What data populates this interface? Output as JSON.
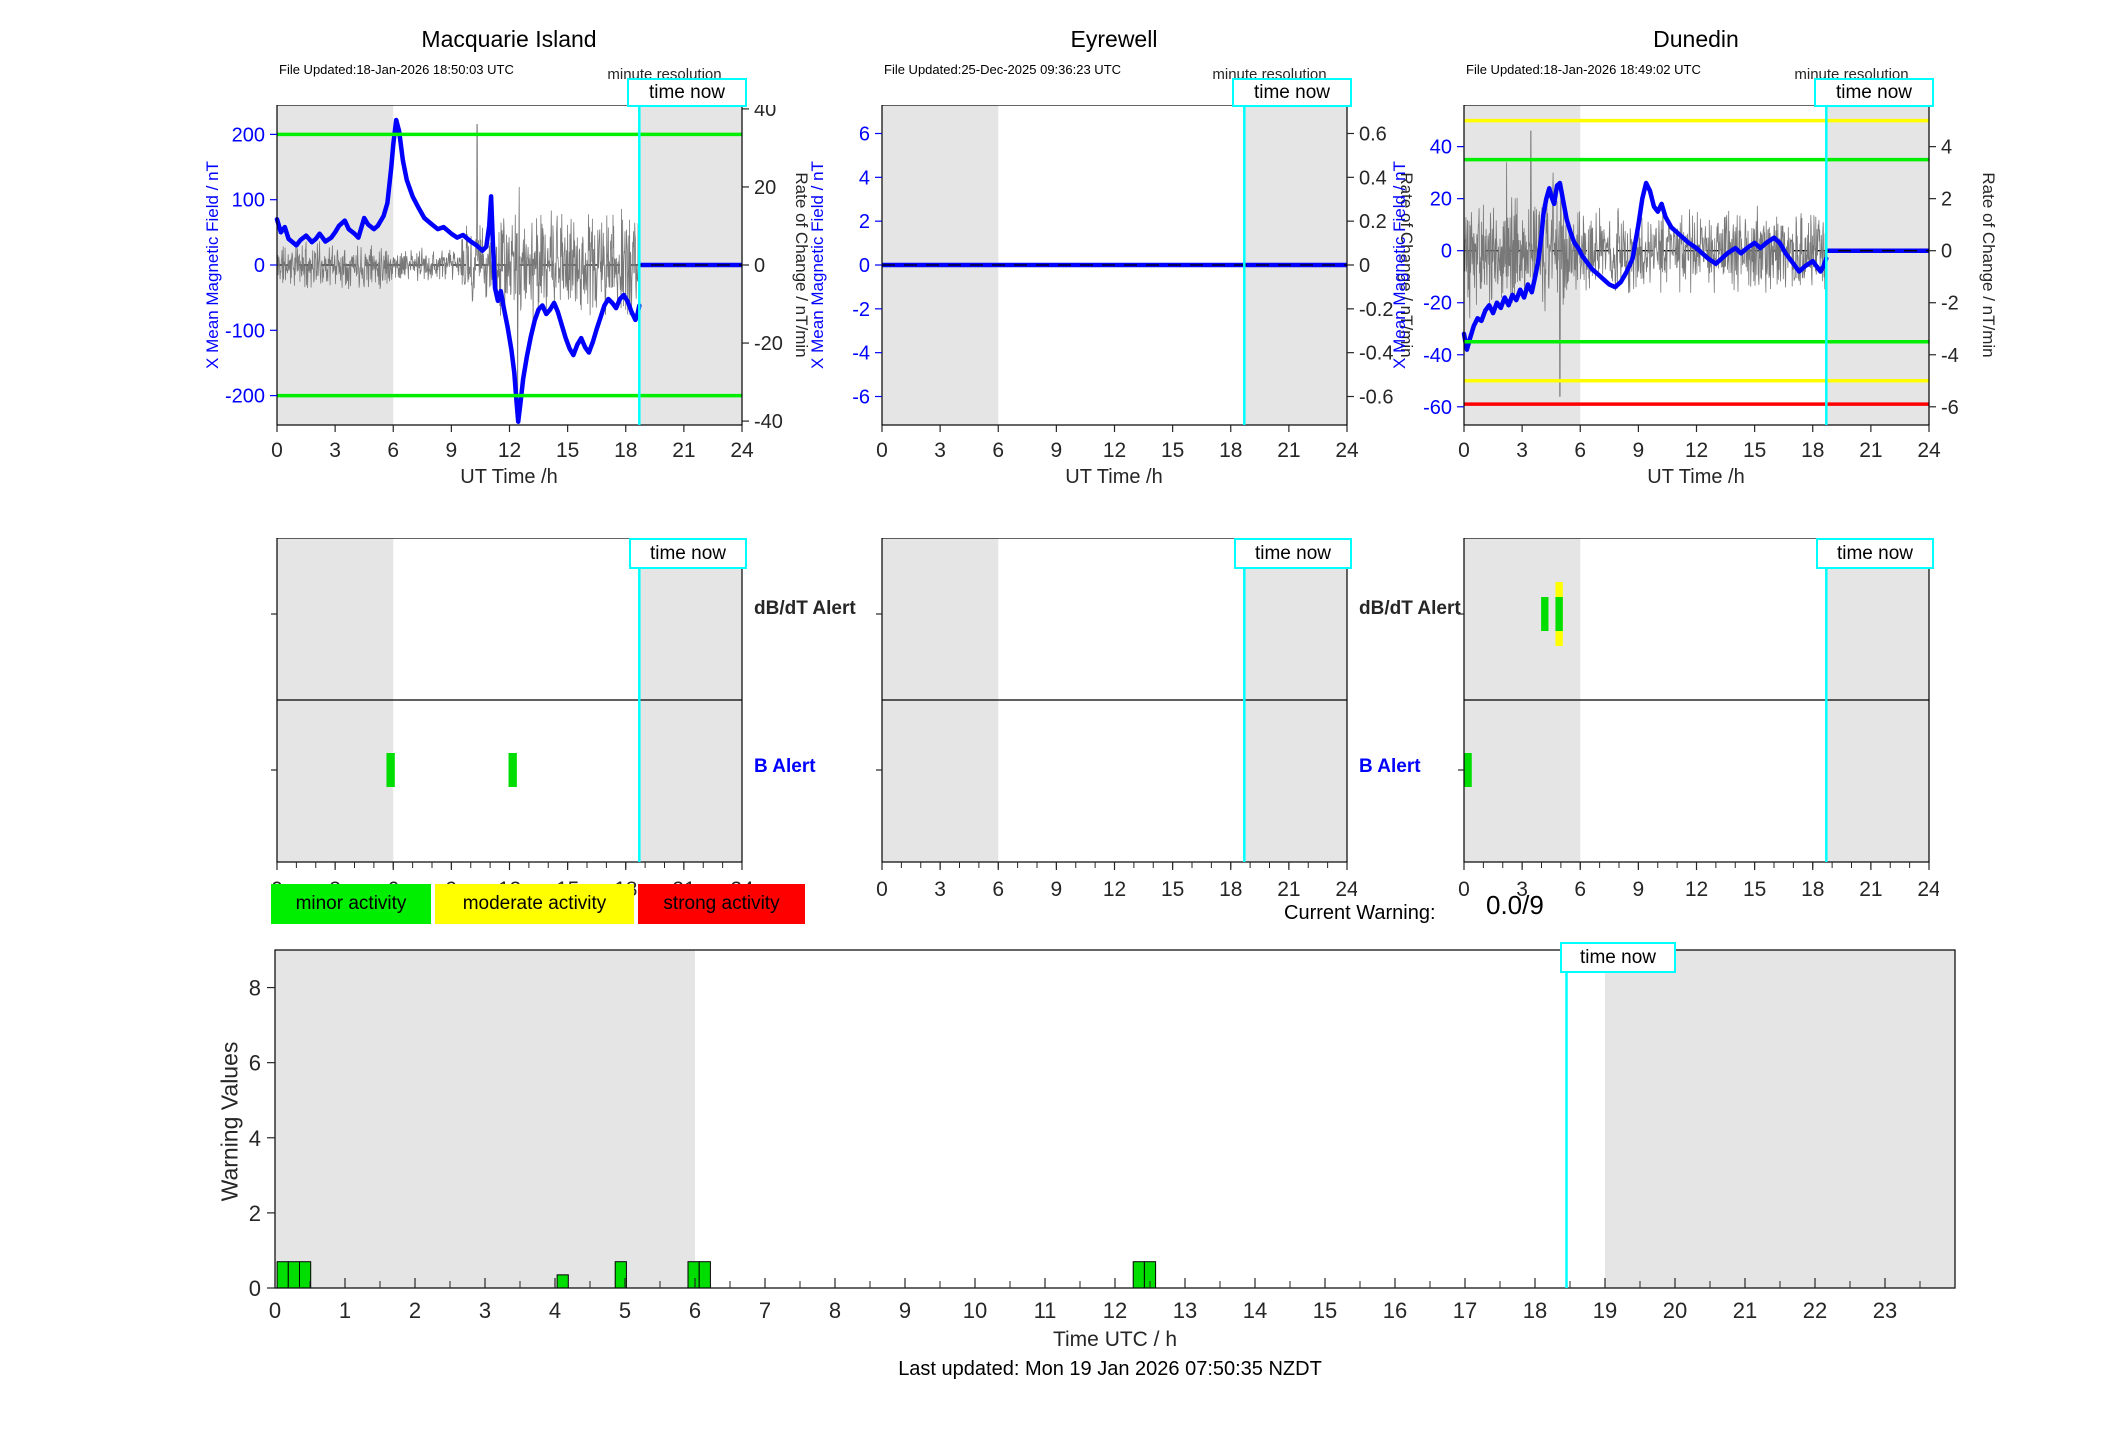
{
  "time_now_label": "time now",
  "alert_row_labels": {
    "dbdt": "dB/dT Alert",
    "b": "B Alert"
  },
  "legend": {
    "items": [
      {
        "label": "minor activity",
        "color": "#00ee00"
      },
      {
        "label": "moderate activity",
        "color": "#ffff00"
      },
      {
        "label": "strong activity",
        "color": "#ff0000"
      }
    ]
  },
  "current_warning": {
    "label": "Current Warning:",
    "value": "0.0/9"
  },
  "footer": {
    "text": "Last updated: Mon 19 Jan 2026 07:50:35 NZDT"
  },
  "colors": {
    "field_blue": "#0000ff",
    "noise_gray": "#787878",
    "shade": "#e5e5e5",
    "time_now_cyan": "#00ffff",
    "bar_green": "#00dd00"
  },
  "chart_data": [
    {
      "id": "macquarie-island",
      "type": "line",
      "title": "Macquarie Island",
      "file_updated": "File Updated:18-Jan-2026 18:50:03 UTC",
      "resolution_note": "minute resolution",
      "x": {
        "label": "UT Time /h",
        "ticks": [
          0,
          3,
          6,
          9,
          12,
          15,
          18,
          21,
          24
        ],
        "range": [
          0,
          24
        ]
      },
      "y_left": {
        "label": "X Mean Magnetic Field / nT",
        "ticks": [
          200,
          100,
          0,
          -100,
          -200
        ],
        "range": [
          -245,
          245
        ]
      },
      "y_right": {
        "label": "Rate of Change / nT/min",
        "ticks": [
          40,
          20,
          0,
          -20,
          -40
        ],
        "range": [
          -41,
          41
        ]
      },
      "shade_h": [
        [
          0,
          6
        ],
        [
          18.7,
          24
        ]
      ],
      "time_now_h": 18.7,
      "flat_from_h": 18.7,
      "thresholds": [
        {
          "value": 200,
          "color": "#00ee00"
        },
        {
          "value": -200,
          "color": "#00ee00"
        }
      ],
      "field_nT": [
        [
          0,
          70
        ],
        [
          0.2,
          50
        ],
        [
          0.4,
          58
        ],
        [
          0.6,
          40
        ],
        [
          0.8,
          35
        ],
        [
          1,
          30
        ],
        [
          1.2,
          38
        ],
        [
          1.5,
          45
        ],
        [
          1.8,
          35
        ],
        [
          2,
          40
        ],
        [
          2.2,
          48
        ],
        [
          2.5,
          36
        ],
        [
          2.8,
          42
        ],
        [
          3,
          50
        ],
        [
          3.2,
          60
        ],
        [
          3.5,
          68
        ],
        [
          3.7,
          55
        ],
        [
          4,
          48
        ],
        [
          4.2,
          42
        ],
        [
          4.5,
          72
        ],
        [
          4.7,
          62
        ],
        [
          5,
          55
        ],
        [
          5.2,
          60
        ],
        [
          5.5,
          75
        ],
        [
          5.7,
          95
        ],
        [
          5.9,
          150
        ],
        [
          6,
          185
        ],
        [
          6.15,
          222
        ],
        [
          6.3,
          205
        ],
        [
          6.5,
          160
        ],
        [
          6.7,
          130
        ],
        [
          7,
          105
        ],
        [
          7.3,
          88
        ],
        [
          7.6,
          72
        ],
        [
          8,
          62
        ],
        [
          8.3,
          55
        ],
        [
          8.6,
          58
        ],
        [
          9,
          48
        ],
        [
          9.3,
          42
        ],
        [
          9.6,
          46
        ],
        [
          10,
          36
        ],
        [
          10.3,
          30
        ],
        [
          10.6,
          22
        ],
        [
          10.8,
          28
        ],
        [
          10.95,
          60
        ],
        [
          11.05,
          105
        ],
        [
          11.15,
          30
        ],
        [
          11.25,
          -35
        ],
        [
          11.4,
          -55
        ],
        [
          11.55,
          -40
        ],
        [
          11.7,
          -65
        ],
        [
          11.9,
          -95
        ],
        [
          12.1,
          -130
        ],
        [
          12.25,
          -165
        ],
        [
          12.35,
          -205
        ],
        [
          12.45,
          -240
        ],
        [
          12.55,
          -215
        ],
        [
          12.7,
          -175
        ],
        [
          12.9,
          -140
        ],
        [
          13.1,
          -110
        ],
        [
          13.3,
          -85
        ],
        [
          13.5,
          -68
        ],
        [
          13.7,
          -62
        ],
        [
          13.9,
          -75
        ],
        [
          14.1,
          -68
        ],
        [
          14.3,
          -58
        ],
        [
          14.5,
          -72
        ],
        [
          14.7,
          -92
        ],
        [
          14.9,
          -112
        ],
        [
          15.1,
          -128
        ],
        [
          15.3,
          -138
        ],
        [
          15.5,
          -122
        ],
        [
          15.7,
          -112
        ],
        [
          15.9,
          -126
        ],
        [
          16.1,
          -134
        ],
        [
          16.3,
          -118
        ],
        [
          16.5,
          -98
        ],
        [
          16.7,
          -80
        ],
        [
          16.9,
          -62
        ],
        [
          17.1,
          -52
        ],
        [
          17.3,
          -58
        ],
        [
          17.5,
          -66
        ],
        [
          17.7,
          -52
        ],
        [
          17.9,
          -46
        ],
        [
          18.1,
          -56
        ],
        [
          18.3,
          -72
        ],
        [
          18.5,
          -84
        ],
        [
          18.6,
          -76
        ],
        [
          18.7,
          -62
        ]
      ],
      "noise": {
        "seed": 11,
        "step_h": 0.02,
        "envelope": [
          [
            0,
            6,
            7
          ],
          [
            6,
            9.5,
            5
          ],
          [
            9.5,
            10.7,
            13
          ],
          [
            10.7,
            11.3,
            9
          ],
          [
            11.3,
            13.2,
            15
          ],
          [
            13.2,
            18.7,
            16
          ]
        ],
        "spikes": [
          [
            10.33,
            36
          ],
          [
            12.42,
            -40
          ],
          [
            12.5,
            20
          ]
        ]
      }
    },
    {
      "id": "eyrewell",
      "type": "line",
      "title": "Eyrewell",
      "file_updated": "File Updated:25-Dec-2025 09:36:23 UTC",
      "resolution_note": "minute resolution",
      "x": {
        "label": "UT Time /h",
        "ticks": [
          0,
          3,
          6,
          9,
          12,
          15,
          18,
          21,
          24
        ],
        "range": [
          0,
          24
        ]
      },
      "y_left": {
        "label": "X Mean Magnetic Field / nT",
        "ticks": [
          6,
          4,
          2,
          0,
          -2,
          -4,
          -6
        ],
        "range": [
          -7.3,
          7.3
        ]
      },
      "y_right": {
        "label": "Rate of Change / nT/min",
        "ticks": [
          0.6,
          0.4,
          0.2,
          0,
          -0.2,
          -0.4,
          -0.6
        ],
        "range": [
          -0.73,
          0.73
        ]
      },
      "shade_h": [
        [
          0,
          6
        ],
        [
          18.7,
          24
        ]
      ],
      "time_now_h": 18.7,
      "flat_from_h": 0,
      "thresholds": [],
      "field_nT": [],
      "noise": {
        "seed": 2,
        "step_h": 0.02,
        "envelope": [],
        "spikes": []
      }
    },
    {
      "id": "dunedin",
      "type": "line",
      "title": "Dunedin",
      "file_updated": "File Updated:18-Jan-2026 18:49:02 UTC",
      "resolution_note": "minute resolution",
      "x": {
        "label": "UT Time /h",
        "ticks": [
          0,
          3,
          6,
          9,
          12,
          15,
          18,
          21,
          24
        ],
        "range": [
          0,
          24
        ]
      },
      "y_left": {
        "label": "X Mean Magnetic Field / nT",
        "ticks": [
          40,
          20,
          0,
          -20,
          -40,
          -60
        ],
        "range": [
          -67,
          56
        ]
      },
      "y_right": {
        "label": "Rate of Change / nT/min",
        "ticks": [
          4,
          2,
          0,
          -2,
          -4,
          -6
        ],
        "range": [
          -6.7,
          5.6
        ]
      },
      "shade_h": [
        [
          0,
          6
        ],
        [
          18.7,
          24
        ]
      ],
      "time_now_h": 18.7,
      "flat_from_h": 18.7,
      "thresholds": [
        {
          "value": 50,
          "color": "#ffff00"
        },
        {
          "value": 35,
          "color": "#00ee00"
        },
        {
          "value": -35,
          "color": "#00ee00"
        },
        {
          "value": -50,
          "color": "#ffff00"
        },
        {
          "value": -59,
          "color": "#ff0000"
        }
      ],
      "field_nT": [
        [
          0,
          -32
        ],
        [
          0.15,
          -38
        ],
        [
          0.3,
          -34
        ],
        [
          0.5,
          -29
        ],
        [
          0.7,
          -26
        ],
        [
          0.9,
          -27
        ],
        [
          1.1,
          -23
        ],
        [
          1.3,
          -21
        ],
        [
          1.5,
          -24
        ],
        [
          1.7,
          -20
        ],
        [
          1.9,
          -22
        ],
        [
          2.1,
          -18
        ],
        [
          2.3,
          -21
        ],
        [
          2.5,
          -17
        ],
        [
          2.7,
          -19
        ],
        [
          2.9,
          -15
        ],
        [
          3.1,
          -18
        ],
        [
          3.3,
          -13
        ],
        [
          3.5,
          -16
        ],
        [
          3.7,
          -9
        ],
        [
          3.85,
          -3
        ],
        [
          4,
          6
        ],
        [
          4.1,
          14
        ],
        [
          4.25,
          20
        ],
        [
          4.4,
          24
        ],
        [
          4.5,
          21
        ],
        [
          4.65,
          18
        ],
        [
          4.8,
          25
        ],
        [
          4.95,
          26
        ],
        [
          5.1,
          20
        ],
        [
          5.3,
          12
        ],
        [
          5.5,
          7
        ],
        [
          5.7,
          3
        ],
        [
          5.9,
          1
        ],
        [
          6.1,
          -2
        ],
        [
          6.3,
          -4
        ],
        [
          6.6,
          -7
        ],
        [
          6.9,
          -9
        ],
        [
          7.2,
          -11
        ],
        [
          7.5,
          -13
        ],
        [
          7.8,
          -14
        ],
        [
          8.1,
          -12
        ],
        [
          8.4,
          -8
        ],
        [
          8.7,
          -3
        ],
        [
          9,
          10
        ],
        [
          9.2,
          20
        ],
        [
          9.4,
          26
        ],
        [
          9.6,
          23
        ],
        [
          9.8,
          17
        ],
        [
          10,
          15
        ],
        [
          10.2,
          18
        ],
        [
          10.4,
          13
        ],
        [
          10.7,
          9
        ],
        [
          11,
          7
        ],
        [
          11.3,
          5
        ],
        [
          11.6,
          3
        ],
        [
          12,
          1
        ],
        [
          12.3,
          -1
        ],
        [
          12.6,
          -3
        ],
        [
          13,
          -5
        ],
        [
          13.3,
          -3
        ],
        [
          13.6,
          -1
        ],
        [
          14,
          1
        ],
        [
          14.3,
          -1
        ],
        [
          14.6,
          1
        ],
        [
          15,
          3
        ],
        [
          15.3,
          1
        ],
        [
          15.6,
          3
        ],
        [
          16,
          5
        ],
        [
          16.3,
          3
        ],
        [
          16.6,
          -1
        ],
        [
          17,
          -5
        ],
        [
          17.3,
          -8
        ],
        [
          17.6,
          -6
        ],
        [
          18,
          -4
        ],
        [
          18.2,
          -6
        ],
        [
          18.4,
          -8
        ],
        [
          18.55,
          -6
        ],
        [
          18.7,
          -3
        ]
      ],
      "noise": {
        "seed": 5,
        "step_h": 0.02,
        "envelope": [
          [
            0,
            6,
            2.6
          ],
          [
            6,
            18.7,
            1.9
          ]
        ],
        "spikes": [
          [
            0.3,
            -2.6
          ],
          [
            2.2,
            3.4
          ],
          [
            3.45,
            4.6
          ],
          [
            4.6,
            3.0
          ],
          [
            4.95,
            -5.6
          ]
        ]
      }
    },
    {
      "id": "alerts-macquarie-island",
      "type": "event-bars",
      "x": {
        "ticks": [
          0,
          3,
          6,
          9,
          12,
          15,
          18,
          21,
          24
        ],
        "range": [
          0,
          24
        ],
        "minor_step": 1
      },
      "shade_h": [
        [
          0,
          6
        ],
        [
          18.7,
          24
        ]
      ],
      "time_now_h": 18.7,
      "show_row_labels": true,
      "bars": [
        {
          "row": "b",
          "h0": 5.65,
          "h1": 6.08,
          "color": "#00dd00"
        },
        {
          "row": "b",
          "h0": 11.95,
          "h1": 12.38,
          "color": "#00dd00"
        }
      ]
    },
    {
      "id": "alerts-eyrewell",
      "type": "event-bars",
      "x": {
        "ticks": [
          0,
          3,
          6,
          9,
          12,
          15,
          18,
          21,
          24
        ],
        "range": [
          0,
          24
        ],
        "minor_step": 1
      },
      "shade_h": [
        [
          0,
          6
        ],
        [
          18.7,
          24
        ]
      ],
      "time_now_h": 18.7,
      "show_row_labels": true,
      "bars": []
    },
    {
      "id": "alerts-dunedin",
      "type": "event-bars",
      "x": {
        "ticks": [
          0,
          3,
          6,
          9,
          12,
          15,
          18,
          21,
          24
        ],
        "range": [
          0,
          24
        ],
        "minor_step": 1
      },
      "shade_h": [
        [
          0,
          6
        ],
        [
          18.7,
          24
        ]
      ],
      "time_now_h": 18.7,
      "show_row_labels": false,
      "bars": [
        {
          "row": "dbdt",
          "h0": 3.98,
          "h1": 4.36,
          "color": "#00dd00"
        },
        {
          "row": "dbdt",
          "h0": 4.72,
          "h1": 5.1,
          "color": "#ffff00",
          "tall": true
        },
        {
          "row": "dbdt",
          "h0": 4.72,
          "h1": 5.1,
          "color": "#00dd00"
        },
        {
          "row": "b",
          "h0": 0.02,
          "h1": 0.4,
          "color": "#00dd00"
        }
      ]
    },
    {
      "id": "warning-values",
      "type": "bar",
      "y": {
        "label": "Warning Values",
        "ticks": [
          0,
          2,
          4,
          6,
          8
        ],
        "range": [
          0,
          9
        ]
      },
      "x": {
        "label": "Time UTC / h",
        "range": [
          0,
          24
        ],
        "label_step": 1,
        "minor_step": 0.5
      },
      "shade_h": [
        [
          0,
          6
        ],
        [
          19,
          24
        ]
      ],
      "time_now_h": 18.45,
      "bar_color": "#00dd00",
      "bars": [
        [
          0.03,
          0.19,
          0.7
        ],
        [
          0.19,
          0.35,
          0.7
        ],
        [
          0.35,
          0.51,
          0.7
        ],
        [
          4.03,
          4.19,
          0.35
        ],
        [
          4.86,
          5.02,
          0.7
        ],
        [
          5.9,
          6.06,
          0.7
        ],
        [
          6.06,
          6.22,
          0.7
        ],
        [
          12.26,
          12.42,
          0.7
        ],
        [
          12.42,
          12.58,
          0.7
        ]
      ]
    }
  ]
}
